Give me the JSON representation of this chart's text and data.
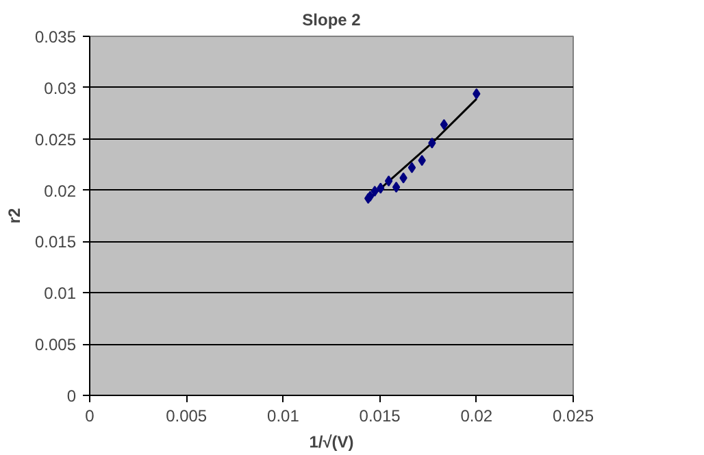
{
  "chart_data": {
    "type": "scatter",
    "title": "Slope 2",
    "xlabel": "1/√(V)",
    "ylabel": "r2",
    "xlim": [
      0,
      0.025
    ],
    "xticks": [
      0,
      0.005,
      0.01,
      0.015,
      0.02,
      0.025
    ],
    "ylim": [
      0,
      0.035
    ],
    "yticks": [
      0,
      0.005,
      0.01,
      0.015,
      0.02,
      0.025,
      0.03,
      0.035
    ],
    "grid": "y",
    "marker": "diamond",
    "series": [
      {
        "color": "#000080",
        "x": [
          0.0144,
          0.0145,
          0.01474,
          0.01504,
          0.01546,
          0.01585,
          0.01622,
          0.01666,
          0.01718,
          0.0177,
          0.01832,
          0.02
        ],
        "values": [
          0.0192,
          0.0194,
          0.0199,
          0.0202,
          0.0209,
          0.0203,
          0.0212,
          0.0222,
          0.0229,
          0.0246,
          0.0264,
          0.0294
        ]
      },
      {
        "type": "line",
        "color": "#000000",
        "marker": "none",
        "x": [
          0.0144,
          0.0177,
          0.02
        ],
        "values": [
          0.0191,
          0.0246,
          0.0289
        ]
      }
    ]
  }
}
